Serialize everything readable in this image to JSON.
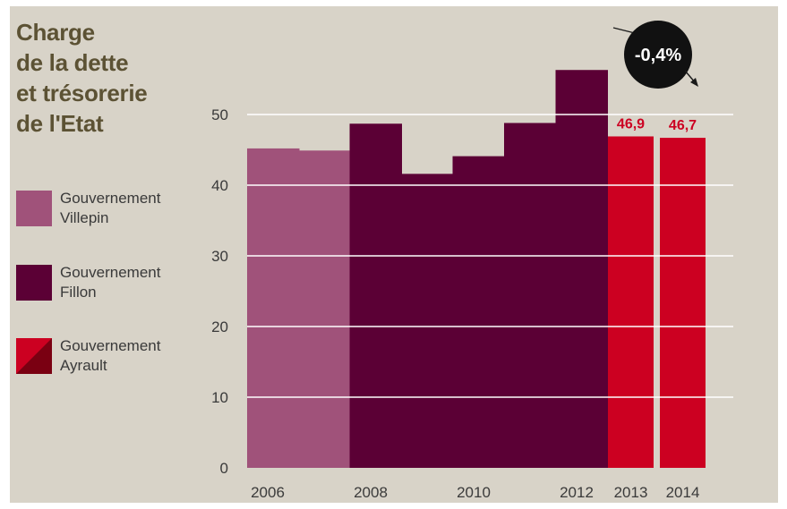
{
  "chart_data": {
    "type": "bar",
    "title_lines": [
      "Charge",
      "de la dette",
      "et trésorerie",
      "de l'Etat"
    ],
    "xlabel": "",
    "ylabel": "",
    "ylim": [
      0,
      50
    ],
    "yticks": [
      0,
      10,
      20,
      30,
      40,
      50
    ],
    "grid": true,
    "legend_placement": "left",
    "colors": {
      "villepin": "#a0527a",
      "fillon": "#5b0035",
      "ayrault": "#cc0021",
      "ayrault_dark": "#7a0012",
      "background": "#d8d3c8",
      "gridline": "#ffffff"
    },
    "series": [
      {
        "name": "Gouvernement Villepin",
        "legend_label": "Gouvernement\nVillepin",
        "color": "#a0527a",
        "style": "flat"
      },
      {
        "name": "Gouvernement Fillon",
        "legend_label": "Gouvernement\nFillon",
        "color": "#5b0035",
        "style": "flat"
      },
      {
        "name": "Gouvernement Ayrault",
        "legend_label": "Gouvernement\nAyrault",
        "color": "#cc0021",
        "color_dark": "#7a0012",
        "style": "split"
      }
    ],
    "historical": [
      {
        "x": 2006,
        "value": 45.2,
        "series": 0
      },
      {
        "x": 2007,
        "value": 44.9,
        "series": 0
      },
      {
        "x": 2008,
        "value": 48.7,
        "series": 1
      },
      {
        "x": 2009,
        "value": 41.6,
        "series": 1
      },
      {
        "x": 2010,
        "value": 44.1,
        "series": 1
      },
      {
        "x": 2011,
        "value": 48.8,
        "series": 1
      },
      {
        "x": 2012,
        "value": 56.3,
        "series": 1
      }
    ],
    "historical_xticks": [
      2006,
      2008,
      2010,
      2012
    ],
    "projections": [
      {
        "x": 2013,
        "label": "2013",
        "value": 46.9,
        "value_label": "46,9",
        "series": 2
      },
      {
        "x": 2014,
        "label": "2014",
        "value": 46.7,
        "value_label": "46,7",
        "series": 2
      }
    ],
    "annotation": {
      "text": "-0,4%",
      "shape": "black-circle-with-arrow"
    }
  }
}
